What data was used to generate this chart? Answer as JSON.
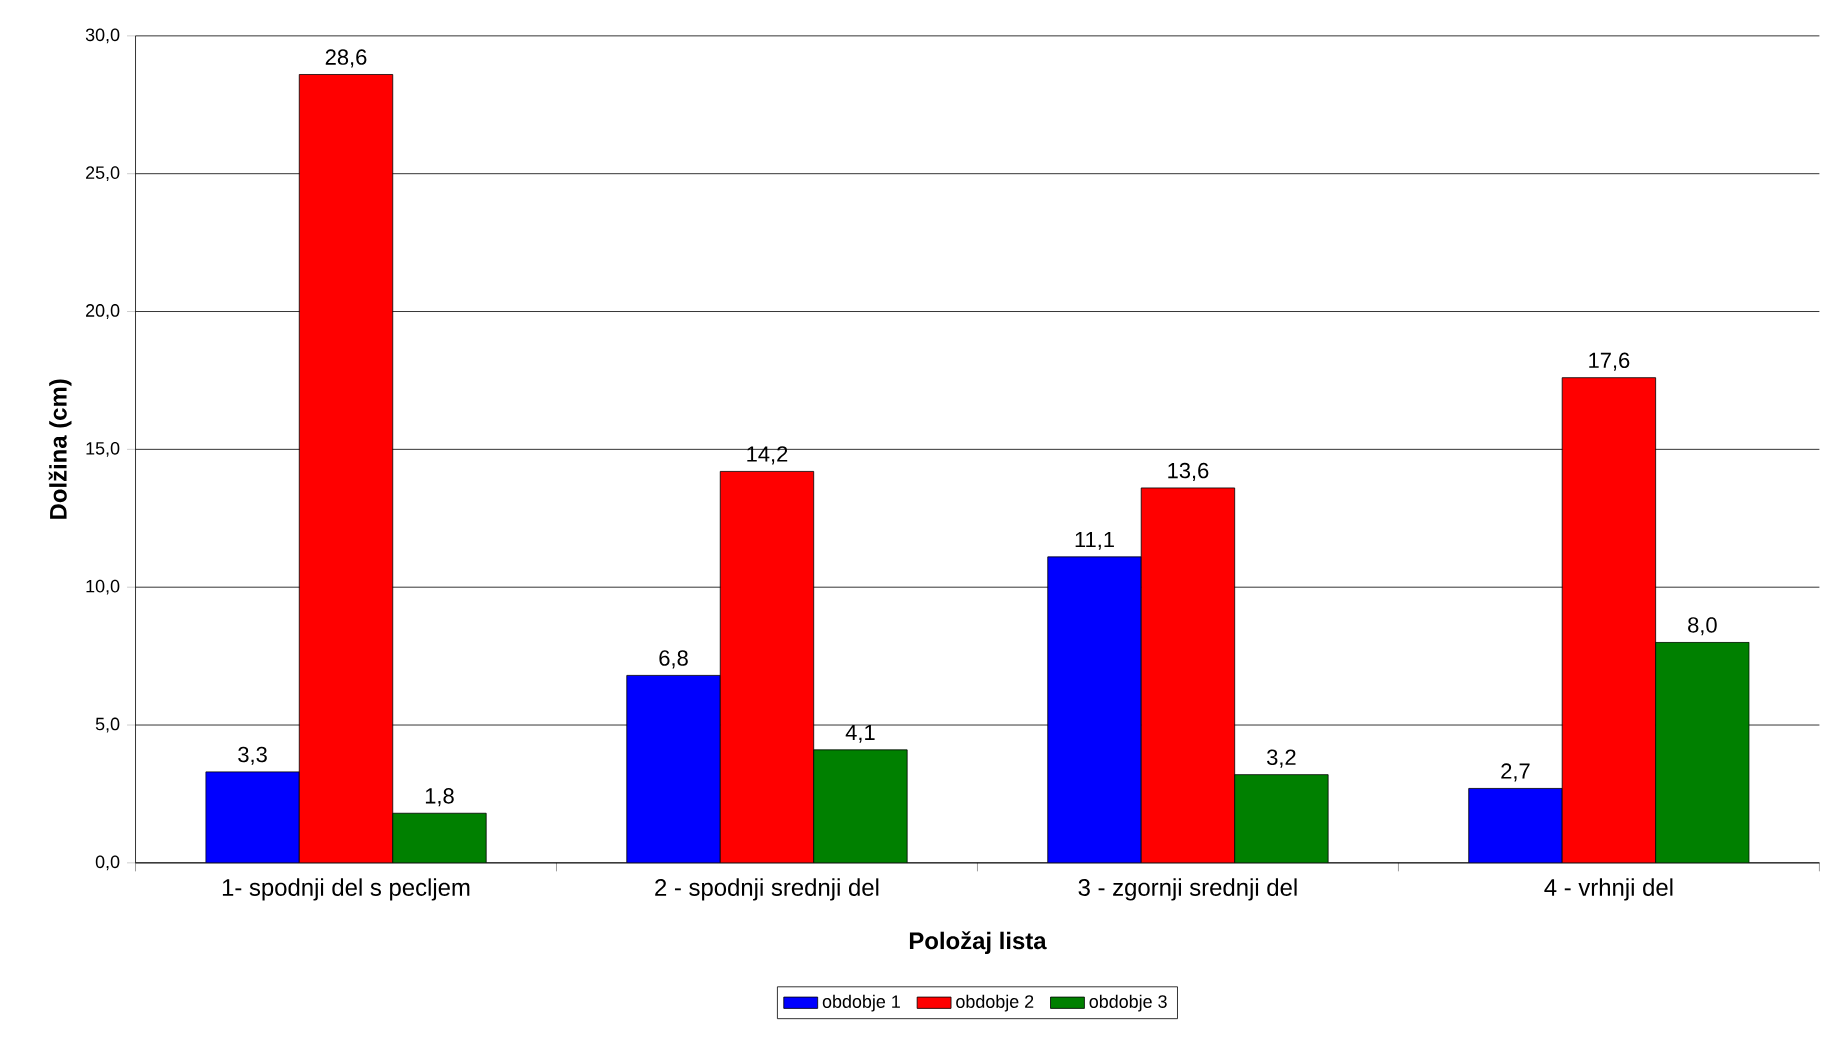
{
  "chart_data": {
    "type": "bar",
    "categories": [
      "1- spodnji del s pecljem",
      "2 - spodnji srednji del",
      "3 - zgornji srednji del",
      "4 - vrhnji del"
    ],
    "xlabel": "Položaj lista",
    "ylabel": "Dolžina (cm)",
    "ylim": [
      0,
      30
    ],
    "yticks": [
      {
        "value": 0,
        "label": "0,0"
      },
      {
        "value": 5,
        "label": "5,0"
      },
      {
        "value": 10,
        "label": "10,0"
      },
      {
        "value": 15,
        "label": "15,0"
      },
      {
        "value": 20,
        "label": "20,0"
      },
      {
        "value": 25,
        "label": "25,0"
      },
      {
        "value": 30,
        "label": "30,0"
      }
    ],
    "grid": "y",
    "legend": "bottom",
    "series": [
      {
        "name": "obdobje 1",
        "color": "#0000ff",
        "values": [
          3.3,
          6.8,
          11.1,
          2.7
        ],
        "value_labels": [
          "3,3",
          "6,8",
          "11,1",
          "2,7"
        ]
      },
      {
        "name": "obdobje 2",
        "color": "#ff0000",
        "values": [
          28.6,
          14.2,
          13.6,
          17.6
        ],
        "value_labels": [
          "28,6",
          "14,2",
          "13,6",
          "17,6"
        ]
      },
      {
        "name": "obdobje 3",
        "color": "#008000",
        "values": [
          1.8,
          4.1,
          3.2,
          8.0
        ],
        "value_labels": [
          "1,8",
          "4,1",
          "3,2",
          "8,0"
        ]
      }
    ]
  }
}
